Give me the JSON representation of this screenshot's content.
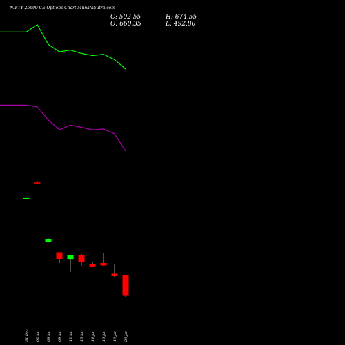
{
  "chart_data": {
    "type": "candlestick",
    "title": "NIFTY 25600  CE Options  Chart MunafaSutra.com",
    "summary": {
      "close": "C: 502.55",
      "high": "H: 674.55",
      "open": "O: 660.35",
      "low": "L: 492.80"
    },
    "categories": [
      "31 Dec",
      "02 Jan",
      "08 Jan",
      "09 Jan",
      "12 Jan",
      "13 Jan",
      "14 Jan",
      "16 Jan",
      "19 Jan",
      "20 Jan"
    ],
    "candles": [
      {
        "date": "31 Dec",
        "open": 1395,
        "high": 1397,
        "low": 1393,
        "close": 1395
      },
      {
        "date": "02 Jan",
        "open": 1490,
        "high": 1492,
        "low": 1484,
        "close": 1485
      },
      {
        "date": "08 Jan",
        "open": 1130,
        "high": 1150,
        "low": 1125,
        "close": 1145
      },
      {
        "date": "09 Jan",
        "open": 1065,
        "high": 1065,
        "low": 1000,
        "close": 1025
      },
      {
        "date": "12 Jan",
        "open": 1020,
        "high": 1050,
        "low": 945,
        "close": 1050
      },
      {
        "date": "13 Jan",
        "open": 1050,
        "high": 1055,
        "low": 985,
        "close": 1005
      },
      {
        "date": "14 Jan",
        "open": 995,
        "high": 1005,
        "low": 975,
        "close": 975
      },
      {
        "date": "16 Jan",
        "open": 1000,
        "high": 1060,
        "low": 980,
        "close": 985
      },
      {
        "date": "19 Jan",
        "open": 935,
        "high": 995,
        "low": 915,
        "close": 920
      },
      {
        "date": "20 Jan",
        "open": 925,
        "high": 925,
        "low": 790,
        "close": 800
      }
    ],
    "upper_band": [
      2405,
      2405,
      2450,
      2330,
      2285,
      2295,
      2275,
      2262,
      2270,
      2237,
      2180
    ],
    "lower_band": [
      1960,
      1960,
      1950,
      1870,
      1810,
      1838,
      1825,
      1810,
      1815,
      1785,
      1680
    ],
    "band_x_index": [
      -1,
      0,
      1,
      2,
      3,
      4,
      5,
      6,
      7,
      8,
      9
    ],
    "ylim": [
      500,
      2600
    ],
    "colors": {
      "background": "#000000",
      "up_candle": "#00ff00",
      "down_candle": "#ff0000",
      "upper_band": "#00ff00",
      "lower_band": "#aa00aa",
      "wick": "#ffffff"
    }
  }
}
